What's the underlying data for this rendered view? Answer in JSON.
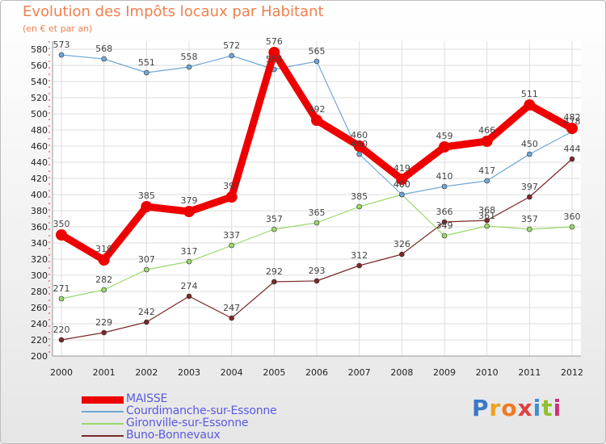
{
  "header": {
    "title": "Evolution des Impôts locaux par Habitant",
    "subtitle": "(en € et par an)"
  },
  "logo": {
    "letters": [
      "P",
      "r",
      "o",
      "x",
      "i",
      "t",
      "i"
    ],
    "colors": [
      "#3a78c8",
      "#f0a020",
      "#f07a20",
      "#e04040",
      "#4090d0",
      "#90c030",
      "#d03080"
    ]
  },
  "chart_data": {
    "type": "line",
    "title": "Evolution des Impôts locaux par Habitant",
    "subtitle": "(en € et par an)",
    "x": [
      "2000",
      "2001",
      "2002",
      "2003",
      "2004",
      "2005",
      "2006",
      "2007",
      "2008",
      "2009",
      "2010",
      "2011",
      "2012"
    ],
    "ylim": [
      200,
      580
    ],
    "yticks": [
      200,
      220,
      240,
      260,
      280,
      300,
      320,
      340,
      360,
      380,
      400,
      420,
      440,
      460,
      480,
      500,
      520,
      540,
      560,
      580
    ],
    "grid": true,
    "legend_position": "bottom-left",
    "series": [
      {
        "name": "MAISSE",
        "color": "#ee0000",
        "values": [
          350,
          319,
          385,
          379,
          397,
          576,
          492,
          460,
          419,
          459,
          466,
          511,
          482
        ]
      },
      {
        "name": "Courdimanche-sur-Essonne",
        "color": "#6fa7d8",
        "values": [
          573,
          568,
          551,
          558,
          572,
          555,
          565,
          450,
          400,
          410,
          417,
          450,
          478
        ]
      },
      {
        "name": "Gironville-sur-Essonne",
        "color": "#9ad86a",
        "values": [
          271,
          282,
          307,
          317,
          337,
          357,
          365,
          385,
          400,
          349,
          361,
          357,
          360
        ]
      },
      {
        "name": "Buno-Bonnevaux",
        "color": "#7a2828",
        "values": [
          220,
          229,
          242,
          274,
          247,
          292,
          293,
          312,
          326,
          366,
          368,
          397,
          444
        ]
      }
    ]
  }
}
